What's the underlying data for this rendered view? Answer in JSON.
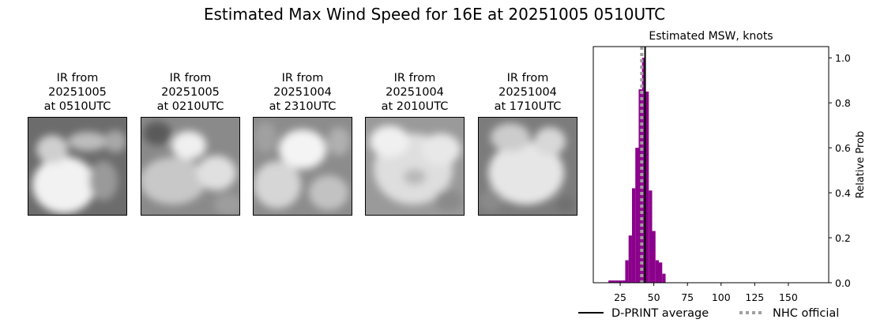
{
  "title": "Estimated Max Wind Speed for 16E at 20251005 0510UTC",
  "ir_panels": [
    {
      "line1": "IR from",
      "line2": "20251005",
      "line3": "at 0510UTC"
    },
    {
      "line1": "IR from",
      "line2": "20251005",
      "line3": "at 0210UTC"
    },
    {
      "line1": "IR from",
      "line2": "20251004",
      "line3": "at 2310UTC"
    },
    {
      "line1": "IR from",
      "line2": "20251004",
      "line3": "at 2010UTC"
    },
    {
      "line1": "IR from",
      "line2": "20251004",
      "line3": "at 1710UTC"
    }
  ],
  "chart_data": {
    "type": "bar",
    "title": "Estimated MSW, knots",
    "xlabel": "",
    "ylabel": "Relative Prob",
    "xlim": [
      5,
      180
    ],
    "ylim": [
      0,
      1.05
    ],
    "xticks": [
      25,
      50,
      75,
      100,
      125,
      150
    ],
    "yticks": [
      0.0,
      0.2,
      0.4,
      0.6,
      0.8,
      1.0
    ],
    "yticks_side": "right",
    "bin_width": 2.5,
    "bins": [
      {
        "x": 17.5,
        "y": 0.01
      },
      {
        "x": 20.0,
        "y": 0.01
      },
      {
        "x": 22.5,
        "y": 0.01
      },
      {
        "x": 25.0,
        "y": 0.01
      },
      {
        "x": 27.5,
        "y": 0.01
      },
      {
        "x": 30.0,
        "y": 0.1
      },
      {
        "x": 32.5,
        "y": 0.21
      },
      {
        "x": 35.0,
        "y": 0.42
      },
      {
        "x": 37.5,
        "y": 0.6
      },
      {
        "x": 40.0,
        "y": 0.86
      },
      {
        "x": 42.5,
        "y": 1.0
      },
      {
        "x": 45.0,
        "y": 0.85
      },
      {
        "x": 47.5,
        "y": 0.41
      },
      {
        "x": 50.0,
        "y": 0.23
      },
      {
        "x": 52.5,
        "y": 0.1
      },
      {
        "x": 55.0,
        "y": 0.09
      },
      {
        "x": 57.5,
        "y": 0.04
      }
    ],
    "bar_color": "#8b008b",
    "dprint_average": 43.5,
    "nhc_official": 41.0,
    "dprint_color": "#000000",
    "nhc_color": "#a0a0a0",
    "legend_position": "bottom",
    "legend": {
      "dprint": "D-PRINT average",
      "nhc": "NHC official"
    }
  }
}
